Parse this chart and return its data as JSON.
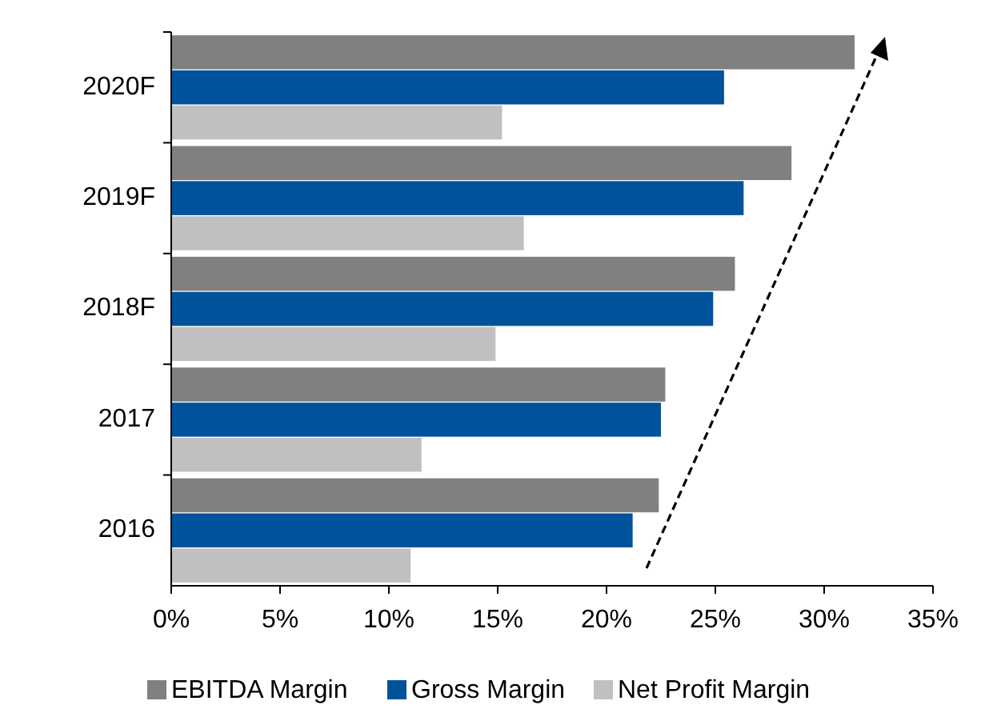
{
  "chart_data": {
    "type": "bar",
    "orientation": "horizontal",
    "categories": [
      "2020F",
      "2019F",
      "2018F",
      "2017",
      "2016"
    ],
    "series": [
      {
        "name": "EBITDA Margin",
        "color": "#808080",
        "values": [
          31.4,
          28.5,
          25.9,
          22.7,
          22.4
        ]
      },
      {
        "name": "Gross Margin",
        "color": "#00529b",
        "values": [
          25.4,
          26.3,
          24.9,
          22.5,
          21.2
        ]
      },
      {
        "name": "Net Profit Margin",
        "color": "#c0c0c0",
        "values": [
          15.2,
          16.2,
          14.9,
          11.5,
          11.0
        ]
      }
    ],
    "xlim": [
      0,
      35
    ],
    "xticks": [
      {
        "value": 0,
        "label": "0%"
      },
      {
        "value": 5,
        "label": "5%"
      },
      {
        "value": 10,
        "label": "10%"
      },
      {
        "value": 15,
        "label": "15%"
      },
      {
        "value": 20,
        "label": "20%"
      },
      {
        "value": 25,
        "label": "25%"
      },
      {
        "value": 30,
        "label": "30%"
      },
      {
        "value": 35,
        "label": "35%"
      }
    ],
    "grid": false,
    "legend": "bottom"
  }
}
